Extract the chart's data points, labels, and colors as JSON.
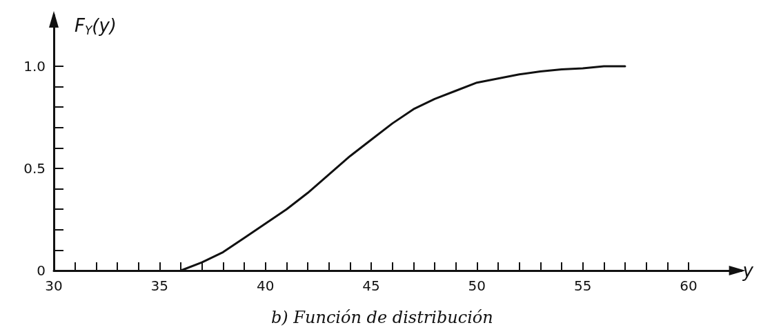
{
  "chart_data": {
    "type": "line",
    "xlabel": "y",
    "ylabel": "F$_{Y}$(y)",
    "annotations": [
      "b) Función de distribución"
    ],
    "x": [
      36,
      37,
      38,
      39,
      40,
      41,
      42,
      43,
      44,
      45,
      46,
      47,
      48,
      49,
      50,
      51,
      52,
      53,
      54,
      55,
      56,
      57
    ],
    "series": [
      {
        "color": "#111111",
        "values": [
          0,
          0.04,
          0.09,
          0.16,
          0.23,
          0.3,
          0.38,
          0.47,
          0.56,
          0.64,
          0.72,
          0.79,
          0.84,
          0.88,
          0.92,
          0.94,
          0.96,
          0.975,
          0.985,
          0.99,
          1.0,
          1.0
        ]
      }
    ],
    "xlim": [
      30,
      62.5
    ],
    "ylim": [
      0,
      1.25
    ],
    "xticks": [
      30,
      {
        "value": 31,
        "label": null
      },
      {
        "value": 32,
        "label": null
      },
      {
        "value": 33,
        "label": null
      },
      {
        "value": 34,
        "label": null
      },
      35,
      {
        "value": 36,
        "label": null
      },
      {
        "value": 37,
        "label": null
      },
      {
        "value": 38,
        "label": null
      },
      {
        "value": 39,
        "label": null
      },
      40,
      {
        "value": 41,
        "label": null
      },
      {
        "value": 42,
        "label": null
      },
      {
        "value": 43,
        "label": null
      },
      {
        "value": 44,
        "label": null
      },
      45,
      {
        "value": 46,
        "label": null
      },
      {
        "value": 47,
        "label": null
      },
      {
        "value": 48,
        "label": null
      },
      {
        "value": 49,
        "label": null
      },
      50,
      {
        "value": 51,
        "label": null
      },
      {
        "value": 52,
        "label": null
      },
      {
        "value": 53,
        "label": null
      },
      {
        "value": 54,
        "label": null
      },
      55,
      {
        "value": 56,
        "label": null
      },
      {
        "value": 57,
        "label": null
      },
      {
        "value": 58,
        "label": null
      },
      {
        "value": 59,
        "label": null
      },
      60
    ],
    "yticks": [
      0,
      {
        "value": 0.1,
        "label": null
      },
      {
        "value": 0.2,
        "label": null
      },
      {
        "value": 0.3,
        "label": null
      },
      {
        "value": 0.4,
        "label": null
      },
      0.5,
      {
        "value": 0.6,
        "label": null
      },
      {
        "value": 0.7,
        "label": null
      },
      {
        "value": 0.8,
        "label": null
      },
      {
        "value": 0.9,
        "label": null
      },
      {
        "value": 1,
        "label": "1.0"
      }
    ],
    "grid": false,
    "marker": "none",
    "line_style": "solid"
  }
}
